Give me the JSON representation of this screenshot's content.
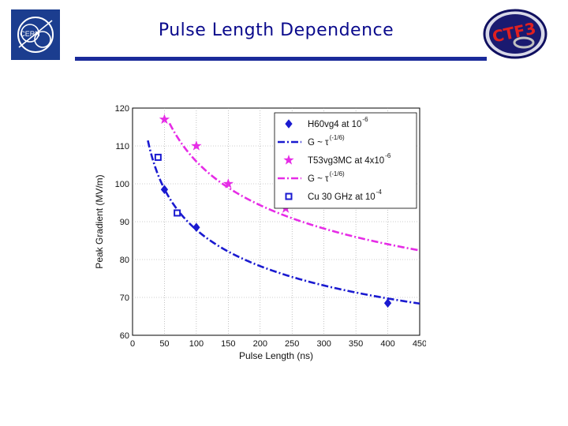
{
  "slide": {
    "title": "Pulse Length Dependence",
    "logo_left_text": "CERN",
    "logo_right_text": "CTF3"
  },
  "colors": {
    "title": "#0a0a8c",
    "rule": "#1a2a9a",
    "series_blue": "#1a1ad0",
    "series_magenta": "#e62ce6"
  },
  "chart_data": {
    "type": "scatter",
    "title": "",
    "xlabel": "Pulse Length (ns)",
    "ylabel": "Peak Gradient (MV/m)",
    "xlim": [
      0,
      450
    ],
    "ylim": [
      60,
      120
    ],
    "xticks": [
      0,
      50,
      100,
      150,
      200,
      250,
      300,
      350,
      400,
      450
    ],
    "yticks": [
      60,
      70,
      80,
      90,
      100,
      110,
      120
    ],
    "grid": true,
    "legend_position": "top-right",
    "series": [
      {
        "name": "H60vg4 at 10",
        "name_sup": "-6",
        "marker": "diamond",
        "color": "#1a1ad0",
        "x": [
          50,
          100,
          400
        ],
        "y": [
          98.5,
          88.5,
          68.5
        ]
      },
      {
        "name": "G ~ τ",
        "name_sup": "(-1/6)",
        "marker": "line",
        "style": "dashdot",
        "color": "#1a1ad0",
        "curve": {
          "a": 189.3,
          "exponent": -0.1667
        },
        "x_range": [
          24,
          450
        ]
      },
      {
        "name": "T53vg3MC at 4x10",
        "name_sup": "-6",
        "marker": "star",
        "color": "#e62ce6",
        "x": [
          50,
          100,
          150,
          240
        ],
        "y": [
          117,
          110,
          100,
          93.5
        ]
      },
      {
        "name": "G ~ τ",
        "name_sup": "(-1/6)",
        "marker": "line",
        "style": "dashdot",
        "color": "#e62ce6",
        "curve": {
          "a": 228.2,
          "exponent": -0.1667
        },
        "x_range": [
          58,
          450
        ]
      },
      {
        "name": "Cu 30 GHz at 10",
        "name_sup": "-4",
        "marker": "square",
        "color": "#1a1ad0",
        "x": [
          40,
          70
        ],
        "y": [
          107,
          92.3
        ]
      }
    ]
  }
}
